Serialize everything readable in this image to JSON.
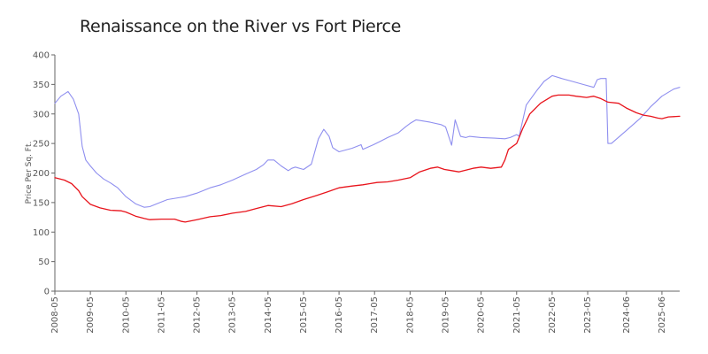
{
  "chart_data": {
    "type": "line",
    "title": "Renaissance on the River vs Fort Pierce",
    "xlabel": "",
    "ylabel": "Price Per Sq. Ft.",
    "ylim": [
      0,
      400
    ],
    "y_ticks": [
      0,
      50,
      100,
      150,
      200,
      250,
      300,
      350,
      400
    ],
    "x_range": [
      2008.33,
      2025.92
    ],
    "x_ticks": [
      "2008-05",
      "2009-05",
      "2010-05",
      "2011-05",
      "2012-05",
      "2013-05",
      "2014-05",
      "2015-05",
      "2016-05",
      "2017-05",
      "2018-05",
      "2019-05",
      "2020-05",
      "2021-05",
      "2022-05",
      "2023-05",
      "2024-06",
      "2025-06"
    ],
    "x_tick_values": [
      2008.33,
      2009.33,
      2010.33,
      2011.33,
      2012.33,
      2013.33,
      2014.33,
      2015.33,
      2016.33,
      2017.33,
      2018.33,
      2019.33,
      2020.33,
      2021.33,
      2022.33,
      2023.33,
      2024.42,
      2025.42
    ],
    "grid": false,
    "legend": "none",
    "colors": {
      "series1": "#8f8fef",
      "series2": "#e8141c",
      "axis": "#666666"
    },
    "series": [
      {
        "name": "Renaissance on the River",
        "color": "#8f8fef",
        "x": [
          2008.33,
          2008.5,
          2008.7,
          2008.85,
          2009.0,
          2009.1,
          2009.2,
          2009.33,
          2009.5,
          2009.7,
          2009.9,
          2010.1,
          2010.33,
          2010.6,
          2010.85,
          2011.0,
          2011.2,
          2011.5,
          2011.8,
          2012.0,
          2012.33,
          2012.7,
          2013.0,
          2013.33,
          2013.7,
          2014.0,
          2014.2,
          2014.33,
          2014.5,
          2014.7,
          2014.9,
          2015.0,
          2015.1,
          2015.33,
          2015.55,
          2015.75,
          2015.9,
          2016.05,
          2016.15,
          2016.33,
          2016.7,
          2016.95,
          2017.0,
          2017.3,
          2017.5,
          2017.7,
          2018.0,
          2018.2,
          2018.33,
          2018.5,
          2018.9,
          2019.2,
          2019.33,
          2019.5,
          2019.6,
          2019.75,
          2019.9,
          2020.0,
          2020.33,
          2020.7,
          2021.0,
          2021.15,
          2021.33,
          2021.4,
          2021.6,
          2021.9,
          2022.1,
          2022.33,
          2022.6,
          2022.9,
          2023.2,
          2023.5,
          2023.6,
          2023.7,
          2023.85,
          2023.9,
          2024.0,
          2024.42,
          2024.8,
          2025.1,
          2025.42,
          2025.75,
          2025.92
        ],
        "y": [
          318,
          330,
          338,
          325,
          300,
          245,
          222,
          212,
          200,
          190,
          183,
          175,
          160,
          148,
          142,
          143,
          148,
          155,
          158,
          160,
          166,
          175,
          180,
          188,
          198,
          206,
          214,
          222,
          222,
          212,
          204,
          208,
          210,
          206,
          215,
          258,
          274,
          262,
          243,
          236,
          242,
          248,
          240,
          248,
          254,
          260,
          268,
          278,
          284,
          290,
          286,
          282,
          278,
          247,
          290,
          262,
          260,
          262,
          260,
          259,
          258,
          260,
          265,
          262,
          315,
          340,
          355,
          365,
          360,
          355,
          350,
          345,
          358,
          360,
          360,
          250,
          250,
          272,
          292,
          312,
          330,
          342,
          345
        ]
      },
      {
        "name": "Fort Pierce",
        "color": "#e8141c",
        "x": [
          2008.33,
          2008.6,
          2008.8,
          2009.0,
          2009.1,
          2009.33,
          2009.6,
          2009.9,
          2010.2,
          2010.33,
          2010.6,
          2010.85,
          2011.0,
          2011.33,
          2011.7,
          2011.9,
          2012.0,
          2012.33,
          2012.7,
          2013.0,
          2013.33,
          2013.7,
          2014.0,
          2014.33,
          2014.7,
          2015.0,
          2015.33,
          2015.7,
          2016.0,
          2016.33,
          2016.7,
          2017.0,
          2017.2,
          2017.4,
          2017.7,
          2018.0,
          2018.33,
          2018.6,
          2018.9,
          2019.1,
          2019.3,
          2019.5,
          2019.7,
          2019.9,
          2020.1,
          2020.33,
          2020.6,
          2020.9,
          2021.0,
          2021.1,
          2021.33,
          2021.5,
          2021.7,
          2022.0,
          2022.33,
          2022.5,
          2022.8,
          2023.0,
          2023.3,
          2023.5,
          2023.7,
          2023.9,
          2024.2,
          2024.42,
          2024.7,
          2024.9,
          2025.1,
          2025.3,
          2025.42,
          2025.6,
          2025.92
        ],
        "y": [
          192,
          188,
          182,
          170,
          160,
          147,
          141,
          137,
          136,
          134,
          127,
          123,
          121,
          122,
          122,
          118,
          117,
          121,
          126,
          128,
          132,
          135,
          140,
          145,
          143,
          148,
          155,
          162,
          168,
          175,
          178,
          180,
          182,
          184,
          185,
          188,
          192,
          202,
          208,
          210,
          206,
          204,
          202,
          205,
          208,
          210,
          208,
          210,
          222,
          240,
          250,
          275,
          300,
          318,
          330,
          332,
          332,
          330,
          328,
          330,
          326,
          320,
          318,
          310,
          302,
          298,
          296,
          293,
          292,
          295,
          296
        ]
      }
    ]
  }
}
